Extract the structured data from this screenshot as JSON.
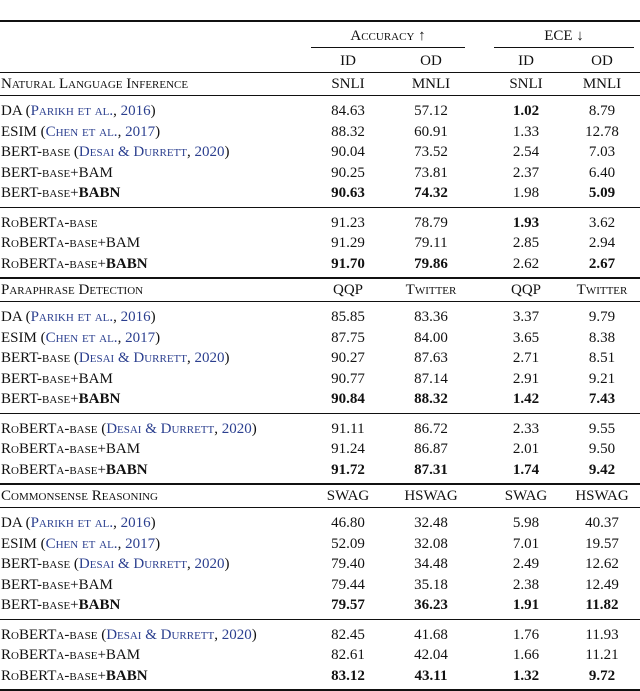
{
  "header": {
    "groups": [
      "Accuracy ↑",
      "ECE ↓"
    ],
    "columns": [
      "ID",
      "OD",
      "ID",
      "OD"
    ]
  },
  "sections": [
    {
      "title": "Natural Language Inference",
      "datasets": [
        "SNLI",
        "MNLI",
        "SNLI",
        "MNLI"
      ],
      "groups": [
        {
          "rows": [
            {
              "label": [
                {
                  "text": "DA ("
                },
                {
                  "text": "Parikh et al.",
                  "style": "cite"
                },
                {
                  "text": ", "
                },
                {
                  "text": "2016",
                  "style": "cite"
                },
                {
                  "text": ")"
                }
              ],
              "values": [
                "84.63",
                "57.12",
                "1.02",
                "8.79"
              ],
              "bold": [
                2
              ]
            },
            {
              "label": [
                {
                  "text": "ESIM ("
                },
                {
                  "text": "Chen et al.",
                  "style": "cite"
                },
                {
                  "text": ", "
                },
                {
                  "text": "2017",
                  "style": "cite"
                },
                {
                  "text": ")"
                }
              ],
              "values": [
                "88.32",
                "60.91",
                "1.33",
                "12.78"
              ],
              "bold": []
            },
            {
              "label": [
                {
                  "text": "BERT-base ("
                },
                {
                  "text": "Desai & Durrett",
                  "style": "cite"
                },
                {
                  "text": ", "
                },
                {
                  "text": "2020",
                  "style": "cite"
                },
                {
                  "text": ")"
                }
              ],
              "values": [
                "90.04",
                "73.52",
                "2.54",
                "7.03"
              ],
              "bold": []
            },
            {
              "label": [
                {
                  "text": "BERT-base+BAM"
                }
              ],
              "values": [
                "90.25",
                "73.81",
                "2.37",
                "6.40"
              ],
              "bold": []
            },
            {
              "label": [
                {
                  "text": "BERT-base+"
                },
                {
                  "text": "BABN",
                  "style": "bold"
                }
              ],
              "values": [
                "90.63",
                "74.32",
                "1.98",
                "5.09"
              ],
              "bold": [
                0,
                1,
                3
              ]
            }
          ]
        },
        {
          "rows": [
            {
              "label": [
                {
                  "text": "RoBERTa-base"
                }
              ],
              "values": [
                "91.23",
                "78.79",
                "1.93",
                "3.62"
              ],
              "bold": [
                2
              ]
            },
            {
              "label": [
                {
                  "text": "RoBERTa-base+BAM"
                }
              ],
              "values": [
                "91.29",
                "79.11",
                "2.85",
                "2.94"
              ],
              "bold": []
            },
            {
              "label": [
                {
                  "text": "RoBERTa-base+"
                },
                {
                  "text": "BABN",
                  "style": "bold"
                }
              ],
              "values": [
                "91.70",
                "79.86",
                "2.62",
                "2.67"
              ],
              "bold": [
                0,
                1,
                3
              ]
            }
          ]
        }
      ]
    },
    {
      "title": "Paraphrase Detection",
      "datasets": [
        "QQP",
        "Twitter",
        "QQP",
        "Twitter"
      ],
      "groups": [
        {
          "rows": [
            {
              "label": [
                {
                  "text": "DA ("
                },
                {
                  "text": "Parikh et al.",
                  "style": "cite"
                },
                {
                  "text": ", "
                },
                {
                  "text": "2016",
                  "style": "cite"
                },
                {
                  "text": ")"
                }
              ],
              "values": [
                "85.85",
                "83.36",
                "3.37",
                "9.79"
              ],
              "bold": []
            },
            {
              "label": [
                {
                  "text": "ESIM ("
                },
                {
                  "text": "Chen et al.",
                  "style": "cite"
                },
                {
                  "text": ", "
                },
                {
                  "text": "2017",
                  "style": "cite"
                },
                {
                  "text": ")"
                }
              ],
              "values": [
                "87.75",
                "84.00",
                "3.65",
                "8.38"
              ],
              "bold": []
            },
            {
              "label": [
                {
                  "text": "BERT-base ("
                },
                {
                  "text": "Desai & Durrett",
                  "style": "cite"
                },
                {
                  "text": ", "
                },
                {
                  "text": "2020",
                  "style": "cite"
                },
                {
                  "text": ")"
                }
              ],
              "values": [
                "90.27",
                "87.63",
                "2.71",
                "8.51"
              ],
              "bold": []
            },
            {
              "label": [
                {
                  "text": "BERT-base+BAM"
                }
              ],
              "values": [
                "90.77",
                "87.14",
                "2.91",
                "9.21"
              ],
              "bold": []
            },
            {
              "label": [
                {
                  "text": "BERT-base+"
                },
                {
                  "text": "BABN",
                  "style": "bold"
                }
              ],
              "values": [
                "90.84",
                "88.32",
                "1.42",
                "7.43"
              ],
              "bold": [
                0,
                1,
                2,
                3
              ]
            }
          ]
        },
        {
          "rows": [
            {
              "label": [
                {
                  "text": "RoBERTa-base ("
                },
                {
                  "text": "Desai & Durrett",
                  "style": "cite"
                },
                {
                  "text": ", "
                },
                {
                  "text": "2020",
                  "style": "cite"
                },
                {
                  "text": ")"
                }
              ],
              "values": [
                "91.11",
                "86.72",
                "2.33",
                "9.55"
              ],
              "bold": []
            },
            {
              "label": [
                {
                  "text": "RoBERTa-base+BAM"
                }
              ],
              "values": [
                "91.24",
                "86.87",
                "2.01",
                "9.50"
              ],
              "bold": []
            },
            {
              "label": [
                {
                  "text": "RoBERTa-base+"
                },
                {
                  "text": "BABN",
                  "style": "bold"
                }
              ],
              "values": [
                "91.72",
                "87.31",
                "1.74",
                "9.42"
              ],
              "bold": [
                0,
                1,
                2,
                3
              ]
            }
          ]
        }
      ]
    },
    {
      "title": "Commonsense Reasoning",
      "datasets": [
        "SWAG",
        "HSWAG",
        "SWAG",
        "HSWAG"
      ],
      "groups": [
        {
          "rows": [
            {
              "label": [
                {
                  "text": "DA ("
                },
                {
                  "text": "Parikh et al.",
                  "style": "cite"
                },
                {
                  "text": ", "
                },
                {
                  "text": "2016",
                  "style": "cite"
                },
                {
                  "text": ")"
                }
              ],
              "values": [
                "46.80",
                "32.48",
                "5.98",
                "40.37"
              ],
              "bold": []
            },
            {
              "label": [
                {
                  "text": "ESIM ("
                },
                {
                  "text": "Chen et al.",
                  "style": "cite"
                },
                {
                  "text": ", "
                },
                {
                  "text": "2017",
                  "style": "cite"
                },
                {
                  "text": ")"
                }
              ],
              "values": [
                "52.09",
                "32.08",
                "7.01",
                "19.57"
              ],
              "bold": []
            },
            {
              "label": [
                {
                  "text": "BERT-base ("
                },
                {
                  "text": "Desai & Durrett",
                  "style": "cite"
                },
                {
                  "text": ", "
                },
                {
                  "text": "2020",
                  "style": "cite"
                },
                {
                  "text": ")"
                }
              ],
              "values": [
                "79.40",
                "34.48",
                "2.49",
                "12.62"
              ],
              "bold": []
            },
            {
              "label": [
                {
                  "text": "BERT-base+BAM"
                }
              ],
              "values": [
                "79.44",
                "35.18",
                "2.38",
                "12.49"
              ],
              "bold": []
            },
            {
              "label": [
                {
                  "text": "BERT-base+"
                },
                {
                  "text": "BABN",
                  "style": "bold"
                }
              ],
              "values": [
                "79.57",
                "36.23",
                "1.91",
                "11.82"
              ],
              "bold": [
                0,
                1,
                2,
                3
              ]
            }
          ]
        },
        {
          "rows": [
            {
              "label": [
                {
                  "text": "RoBERTa-base ("
                },
                {
                  "text": "Desai & Durrett",
                  "style": "cite"
                },
                {
                  "text": ", "
                },
                {
                  "text": "2020",
                  "style": "cite"
                },
                {
                  "text": ")"
                }
              ],
              "values": [
                "82.45",
                "41.68",
                "1.76",
                "11.93"
              ],
              "bold": []
            },
            {
              "label": [
                {
                  "text": "RoBERTa-base+BAM"
                }
              ],
              "values": [
                "82.61",
                "42.04",
                "1.66",
                "11.21"
              ],
              "bold": []
            },
            {
              "label": [
                {
                  "text": "RoBERTa-base+"
                },
                {
                  "text": "BABN",
                  "style": "bold"
                }
              ],
              "values": [
                "83.12",
                "43.11",
                "1.32",
                "9.72"
              ],
              "bold": [
                0,
                1,
                2,
                3
              ]
            }
          ]
        }
      ]
    }
  ]
}
